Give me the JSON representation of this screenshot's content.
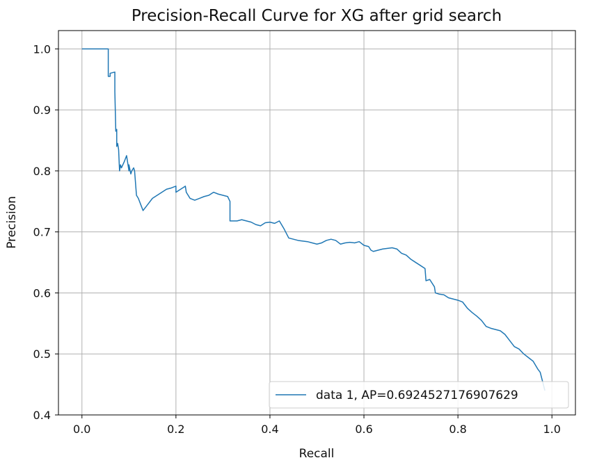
{
  "chart_data": {
    "type": "line",
    "title": "Precision-Recall Curve for XG after grid search",
    "xlabel": "Recall",
    "ylabel": "Precision",
    "xlim": [
      -0.05,
      1.05
    ],
    "ylim": [
      0.4,
      1.03
    ],
    "xticks": [
      0.0,
      0.2,
      0.4,
      0.6,
      0.8,
      1.0
    ],
    "xtick_labels": [
      "0.0",
      "0.2",
      "0.4",
      "0.6",
      "0.8",
      "1.0"
    ],
    "yticks": [
      0.4,
      0.5,
      0.6,
      0.7,
      0.8,
      0.9,
      1.0
    ],
    "ytick_labels": [
      "0.4",
      "0.5",
      "0.6",
      "0.7",
      "0.8",
      "0.9",
      "1.0"
    ],
    "grid": true,
    "legend_position": "lower-right",
    "series": [
      {
        "name": "data 1, AP=0.6924527176907629",
        "color": "#1f77b4",
        "x": [
          0.0,
          0.056,
          0.056,
          0.06,
          0.06,
          0.07,
          0.07,
          0.072,
          0.074,
          0.074,
          0.076,
          0.078,
          0.08,
          0.082,
          0.084,
          0.09,
          0.095,
          0.1,
          0.1,
          0.104,
          0.106,
          0.11,
          0.112,
          0.116,
          0.12,
          0.125,
          0.13,
          0.14,
          0.15,
          0.16,
          0.17,
          0.18,
          0.19,
          0.2,
          0.2,
          0.21,
          0.22,
          0.222,
          0.23,
          0.24,
          0.25,
          0.26,
          0.27,
          0.28,
          0.29,
          0.3,
          0.31,
          0.315,
          0.315,
          0.33,
          0.34,
          0.35,
          0.36,
          0.37,
          0.38,
          0.39,
          0.4,
          0.41,
          0.42,
          0.43,
          0.44,
          0.45,
          0.46,
          0.47,
          0.48,
          0.49,
          0.5,
          0.51,
          0.52,
          0.53,
          0.54,
          0.55,
          0.56,
          0.57,
          0.58,
          0.59,
          0.6,
          0.61,
          0.615,
          0.62,
          0.63,
          0.64,
          0.65,
          0.66,
          0.67,
          0.68,
          0.69,
          0.7,
          0.71,
          0.72,
          0.73,
          0.732,
          0.74,
          0.75,
          0.752,
          0.76,
          0.77,
          0.78,
          0.79,
          0.8,
          0.81,
          0.82,
          0.83,
          0.84,
          0.85,
          0.86,
          0.87,
          0.88,
          0.89,
          0.9,
          0.91,
          0.92,
          0.93,
          0.94,
          0.95,
          0.96,
          0.97,
          0.975,
          0.98,
          0.985
        ],
        "y": [
          1.0,
          1.0,
          0.955,
          0.955,
          0.96,
          0.962,
          0.93,
          0.865,
          0.868,
          0.84,
          0.845,
          0.835,
          0.8,
          0.81,
          0.805,
          0.815,
          0.825,
          0.8,
          0.81,
          0.795,
          0.8,
          0.805,
          0.8,
          0.76,
          0.755,
          0.745,
          0.735,
          0.745,
          0.755,
          0.76,
          0.765,
          0.77,
          0.772,
          0.775,
          0.765,
          0.77,
          0.775,
          0.765,
          0.755,
          0.752,
          0.755,
          0.758,
          0.76,
          0.765,
          0.762,
          0.76,
          0.758,
          0.75,
          0.718,
          0.718,
          0.72,
          0.718,
          0.716,
          0.712,
          0.71,
          0.715,
          0.716,
          0.714,
          0.718,
          0.705,
          0.69,
          0.688,
          0.686,
          0.685,
          0.684,
          0.682,
          0.68,
          0.682,
          0.686,
          0.688,
          0.686,
          0.68,
          0.682,
          0.683,
          0.682,
          0.684,
          0.678,
          0.676,
          0.67,
          0.668,
          0.67,
          0.672,
          0.673,
          0.674,
          0.672,
          0.665,
          0.662,
          0.655,
          0.65,
          0.645,
          0.64,
          0.62,
          0.622,
          0.61,
          0.6,
          0.598,
          0.597,
          0.592,
          0.59,
          0.588,
          0.585,
          0.575,
          0.568,
          0.562,
          0.555,
          0.545,
          0.542,
          0.54,
          0.538,
          0.532,
          0.522,
          0.512,
          0.508,
          0.5,
          0.494,
          0.488,
          0.475,
          0.47,
          0.455,
          0.44
        ]
      }
    ]
  }
}
